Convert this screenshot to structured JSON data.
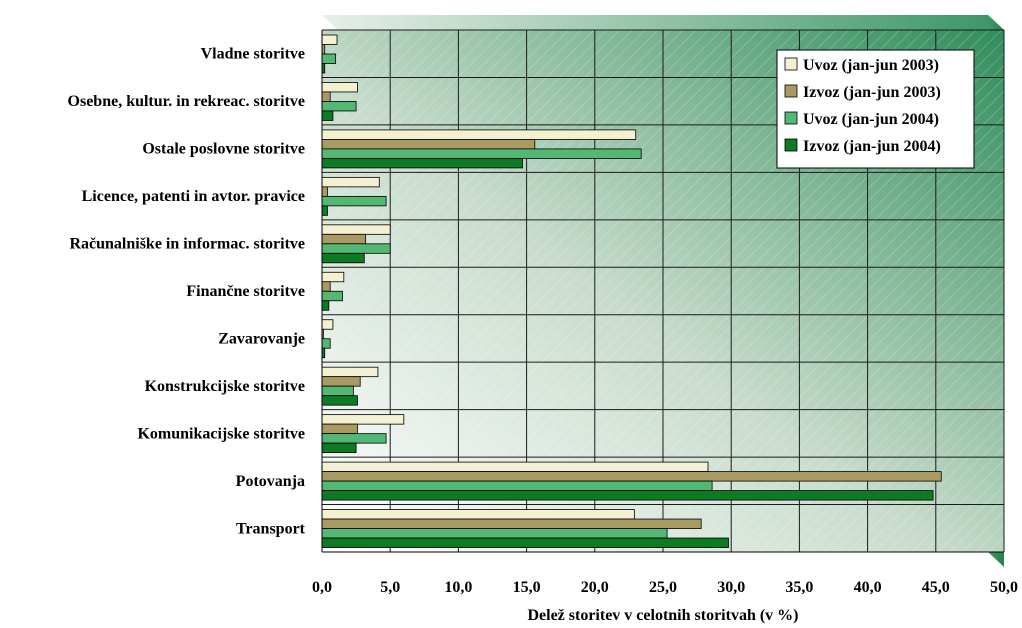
{
  "chart_data": {
    "type": "bar",
    "orientation": "horizontal",
    "categories": [
      "Vladne storitve",
      "Osebne, kultur. in rekreac. storitve",
      "Ostale poslovne storitve",
      "Licence, patenti in avtor. pravice",
      "Računalniške in informac. storitve",
      "Finančne storitve",
      "Zavarovanje",
      "Konstrukcijske storitve",
      "Komunikacijske storitve",
      "Potovanja",
      "Transport"
    ],
    "series": [
      {
        "name": "Uvoz (jan-jun 2003)",
        "color": "#f3f1d2",
        "values": [
          1.1,
          2.6,
          23.0,
          4.2,
          5.0,
          1.6,
          0.8,
          4.1,
          6.0,
          28.3,
          22.9
        ]
      },
      {
        "name": "Izvoz (jan-jun 2003)",
        "color": "#a89a62",
        "values": [
          0.2,
          0.6,
          15.6,
          0.4,
          3.2,
          0.6,
          0.1,
          2.8,
          2.6,
          45.4,
          27.8
        ]
      },
      {
        "name": "Uvoz (jan-jun 2004)",
        "color": "#52b874",
        "values": [
          1.0,
          2.5,
          23.4,
          4.7,
          5.0,
          1.5,
          0.6,
          2.3,
          4.7,
          28.6,
          25.3
        ]
      },
      {
        "name": "Izvoz (jan-jun 2004)",
        "color": "#0e7a24",
        "values": [
          0.2,
          0.8,
          14.7,
          0.4,
          3.1,
          0.5,
          0.2,
          2.6,
          2.5,
          44.8,
          29.8
        ]
      }
    ],
    "x_ticks": [
      "0,0",
      "5,0",
      "10,0",
      "15,0",
      "20,0",
      "25,0",
      "30,0",
      "35,0",
      "40,0",
      "45,0",
      "50,0"
    ],
    "xlim": [
      0,
      50
    ],
    "xlabel": "Delež storitev v celotnih storitvah (v %)",
    "legend_position": "top-right",
    "grid": true
  }
}
